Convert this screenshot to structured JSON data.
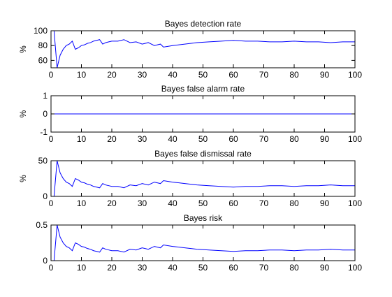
{
  "chart_data": [
    {
      "type": "line",
      "title": "Bayes detection rate",
      "xlabel": "",
      "ylabel": "%",
      "xlim": [
        0,
        100
      ],
      "ylim": [
        50,
        100
      ],
      "xticks": [
        0,
        10,
        20,
        30,
        40,
        50,
        60,
        70,
        80,
        90,
        100
      ],
      "xtick_labels": [
        "0",
        "10",
        "20",
        "30",
        "40",
        "50",
        "60",
        "70",
        "80",
        "90",
        "100"
      ],
      "yticks": [
        60,
        80,
        100
      ],
      "ytick_labels": [
        "60",
        "80",
        "100"
      ],
      "grid": false,
      "line_color": "#0000ff",
      "x": [
        0,
        1,
        2,
        3,
        4,
        5,
        6,
        7,
        8,
        9,
        10,
        11,
        12,
        13,
        14,
        15,
        16,
        17,
        18,
        19,
        20,
        22,
        24,
        26,
        28,
        30,
        32,
        34,
        36,
        37,
        40,
        44,
        48,
        52,
        56,
        60,
        64,
        68,
        72,
        76,
        80,
        84,
        88,
        92,
        96,
        100
      ],
      "y": [
        100,
        100,
        50,
        67,
        75,
        80,
        82,
        86,
        75,
        77,
        80,
        81,
        83,
        84,
        86,
        87,
        88,
        82,
        84,
        85,
        86,
        86,
        88,
        84,
        85,
        82,
        84,
        80,
        82,
        78,
        80,
        82,
        84,
        85,
        86,
        87,
        86,
        86,
        85,
        85,
        86,
        85,
        85,
        84,
        85,
        85
      ]
    },
    {
      "type": "line",
      "title": "Bayes false alarm rate",
      "xlabel": "",
      "ylabel": "%",
      "xlim": [
        0,
        100
      ],
      "ylim": [
        -1,
        1
      ],
      "xticks": [
        0,
        10,
        20,
        30,
        40,
        50,
        60,
        70,
        80,
        90,
        100
      ],
      "xtick_labels": [
        "0",
        "10",
        "20",
        "30",
        "40",
        "50",
        "60",
        "70",
        "80",
        "90",
        "100"
      ],
      "yticks": [
        -1,
        0,
        1
      ],
      "ytick_labels": [
        "-1",
        "0",
        "1"
      ],
      "grid": false,
      "line_color": "#0000ff",
      "x": [
        0,
        100
      ],
      "y": [
        0,
        0
      ]
    },
    {
      "type": "line",
      "title": "Bayes false dismissal rate",
      "xlabel": "",
      "ylabel": "%",
      "xlim": [
        0,
        100
      ],
      "ylim": [
        0,
        50
      ],
      "xticks": [
        0,
        10,
        20,
        30,
        40,
        50,
        60,
        70,
        80,
        90,
        100
      ],
      "xtick_labels": [
        "0",
        "10",
        "20",
        "30",
        "40",
        "50",
        "60",
        "70",
        "80",
        "90",
        "100"
      ],
      "yticks": [
        0,
        50
      ],
      "ytick_labels": [
        "0",
        "50"
      ],
      "grid": false,
      "line_color": "#0000ff",
      "x": [
        0,
        1,
        2,
        3,
        4,
        5,
        6,
        7,
        8,
        9,
        10,
        11,
        12,
        13,
        14,
        15,
        16,
        17,
        18,
        19,
        20,
        22,
        24,
        26,
        28,
        30,
        32,
        34,
        36,
        37,
        40,
        44,
        48,
        52,
        56,
        60,
        64,
        68,
        72,
        76,
        80,
        84,
        88,
        92,
        96,
        100
      ],
      "y": [
        0,
        0,
        50,
        33,
        25,
        20,
        18,
        14,
        25,
        23,
        20,
        19,
        17,
        16,
        14,
        13,
        12,
        18,
        16,
        15,
        14,
        14,
        12,
        16,
        15,
        18,
        16,
        20,
        18,
        22,
        20,
        18,
        16,
        15,
        14,
        13,
        14,
        14,
        15,
        15,
        14,
        15,
        15,
        16,
        15,
        15
      ]
    },
    {
      "type": "line",
      "title": "Bayes risk",
      "xlabel": "",
      "ylabel": "",
      "xlim": [
        0,
        100
      ],
      "ylim": [
        0,
        0.5
      ],
      "xticks": [
        0,
        10,
        20,
        30,
        40,
        50,
        60,
        70,
        80,
        90,
        100
      ],
      "xtick_labels": [
        "0",
        "10",
        "20",
        "30",
        "40",
        "50",
        "60",
        "70",
        "80",
        "90",
        "100"
      ],
      "yticks": [
        0,
        0.5
      ],
      "ytick_labels": [
        "0",
        "0.5"
      ],
      "grid": false,
      "line_color": "#0000ff",
      "x": [
        0,
        1,
        2,
        3,
        4,
        5,
        6,
        7,
        8,
        9,
        10,
        11,
        12,
        13,
        14,
        15,
        16,
        17,
        18,
        19,
        20,
        22,
        24,
        26,
        28,
        30,
        32,
        34,
        36,
        37,
        40,
        44,
        48,
        52,
        56,
        60,
        64,
        68,
        72,
        76,
        80,
        84,
        88,
        92,
        96,
        100
      ],
      "y": [
        0,
        0,
        0.5,
        0.33,
        0.25,
        0.2,
        0.18,
        0.14,
        0.25,
        0.23,
        0.2,
        0.19,
        0.17,
        0.16,
        0.14,
        0.13,
        0.12,
        0.18,
        0.16,
        0.15,
        0.14,
        0.14,
        0.12,
        0.16,
        0.15,
        0.18,
        0.16,
        0.2,
        0.18,
        0.22,
        0.2,
        0.18,
        0.16,
        0.15,
        0.14,
        0.13,
        0.14,
        0.14,
        0.15,
        0.15,
        0.14,
        0.15,
        0.15,
        0.16,
        0.15,
        0.15
      ]
    }
  ]
}
